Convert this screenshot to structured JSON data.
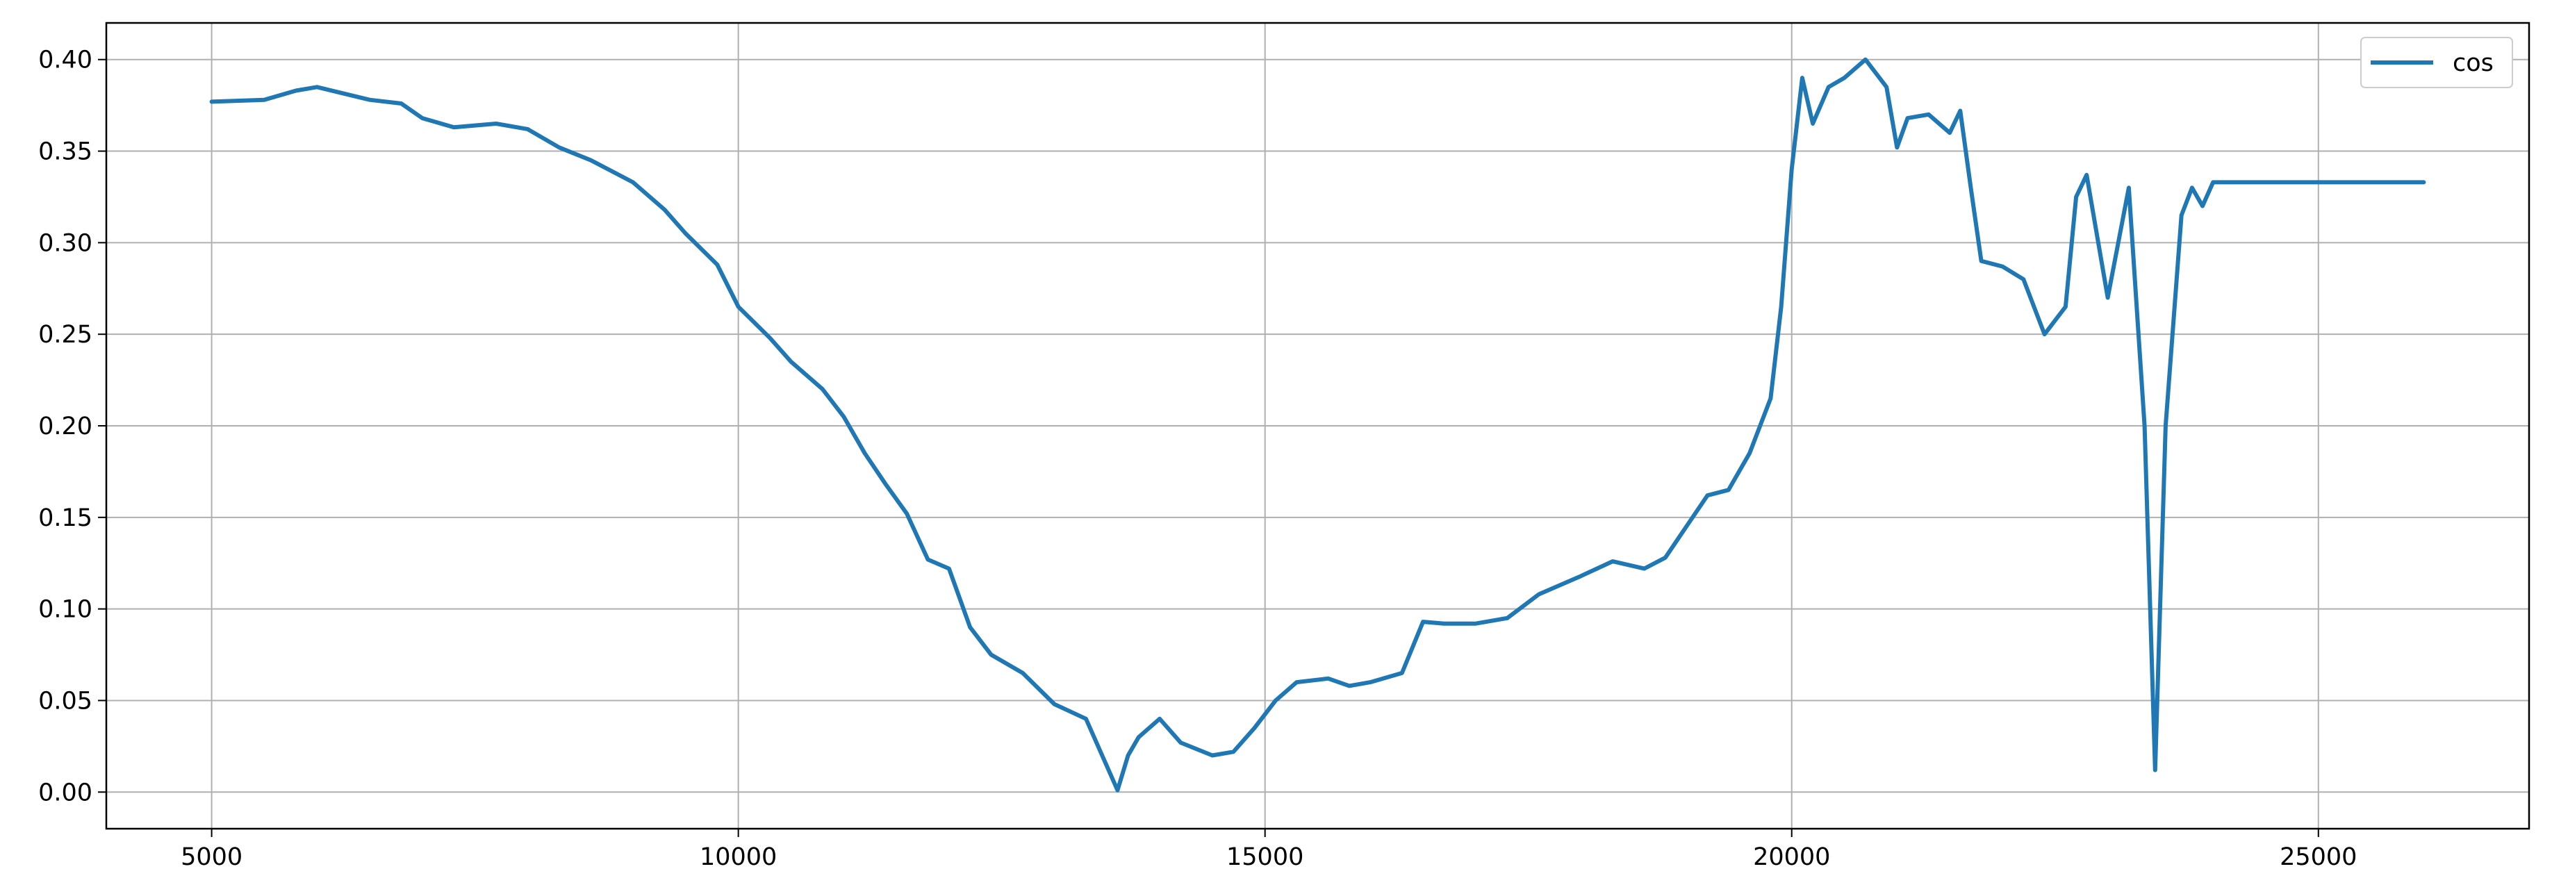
{
  "chart_data": {
    "type": "line",
    "title": "",
    "xlabel": "",
    "ylabel": "",
    "xlim": [
      4000,
      27000
    ],
    "ylim": [
      -0.02,
      0.42
    ],
    "x_ticks": [
      5000,
      10000,
      15000,
      20000,
      25000
    ],
    "x_tick_labels": [
      "5000",
      "10000",
      "15000",
      "20000",
      "25000"
    ],
    "y_ticks": [
      0.0,
      0.05,
      0.1,
      0.15,
      0.2,
      0.25,
      0.3,
      0.35,
      0.4
    ],
    "y_tick_labels": [
      "0.00",
      "0.05",
      "0.10",
      "0.15",
      "0.20",
      "0.25",
      "0.30",
      "0.35",
      "0.40"
    ],
    "grid": true,
    "legend_position": "top-right",
    "colors": {
      "series": "#1f77b4",
      "grid": "#b0b0b0",
      "axes": "#000000"
    },
    "series": [
      {
        "name": "cos",
        "x": [
          5000,
          5500,
          5800,
          6000,
          6500,
          6800,
          7000,
          7300,
          7700,
          8000,
          8300,
          8600,
          9000,
          9300,
          9500,
          9800,
          10000,
          10300,
          10500,
          10800,
          11000,
          11200,
          11400,
          11600,
          11800,
          12000,
          12200,
          12400,
          12700,
          13000,
          13300,
          13600,
          13700,
          13800,
          14000,
          14200,
          14500,
          14700,
          14900,
          15100,
          15300,
          15600,
          15800,
          16000,
          16300,
          16500,
          16700,
          17000,
          17300,
          17600,
          18000,
          18300,
          18600,
          18800,
          19000,
          19200,
          19400,
          19600,
          19800,
          19900,
          20000,
          20100,
          20200,
          20350,
          20500,
          20700,
          20900,
          21000,
          21100,
          21300,
          21500,
          21600,
          21700,
          21800,
          22000,
          22200,
          22400,
          22600,
          22700,
          22800,
          23000,
          23200,
          23350,
          23450,
          23550,
          23700,
          23800,
          23900,
          24000,
          25000,
          26000
        ],
        "values": [
          0.377,
          0.378,
          0.383,
          0.385,
          0.378,
          0.376,
          0.368,
          0.363,
          0.365,
          0.362,
          0.352,
          0.345,
          0.333,
          0.318,
          0.305,
          0.288,
          0.265,
          0.248,
          0.235,
          0.22,
          0.205,
          0.185,
          0.168,
          0.152,
          0.127,
          0.122,
          0.09,
          0.075,
          0.065,
          0.048,
          0.04,
          0.001,
          0.02,
          0.03,
          0.04,
          0.027,
          0.02,
          0.022,
          0.035,
          0.05,
          0.06,
          0.062,
          0.058,
          0.06,
          0.065,
          0.093,
          0.092,
          0.092,
          0.095,
          0.108,
          0.118,
          0.126,
          0.122,
          0.128,
          0.145,
          0.162,
          0.165,
          0.185,
          0.215,
          0.265,
          0.34,
          0.39,
          0.365,
          0.385,
          0.39,
          0.4,
          0.385,
          0.352,
          0.368,
          0.37,
          0.36,
          0.372,
          0.33,
          0.29,
          0.287,
          0.28,
          0.25,
          0.265,
          0.325,
          0.337,
          0.27,
          0.33,
          0.2,
          0.012,
          0.2,
          0.315,
          0.33,
          0.32,
          0.333,
          0.333,
          0.333
        ]
      }
    ]
  }
}
